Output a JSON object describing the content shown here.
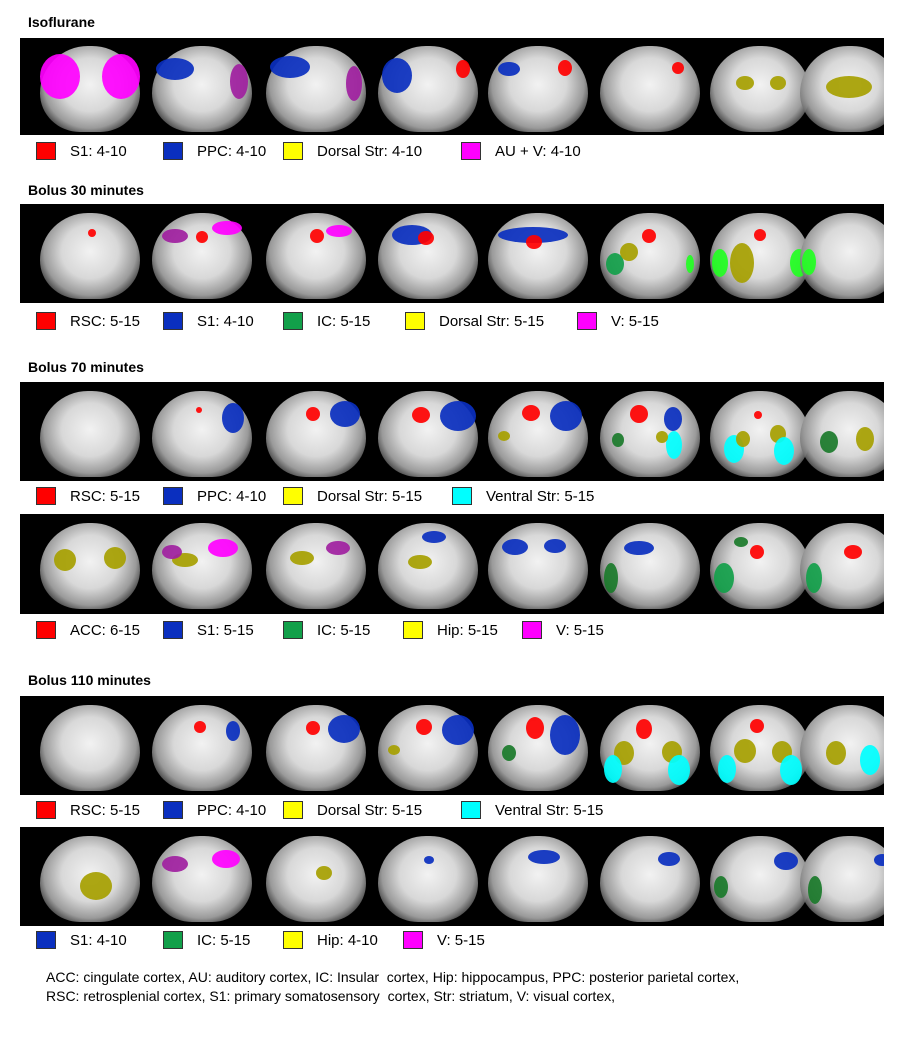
{
  "colors": {
    "red": "#ff0000",
    "blue": "#0a2fbf",
    "green": "#12a04a",
    "yellow": "#ffff00",
    "magenta": "#ff00ff",
    "cyan": "#00ffff",
    "olive": "#a6a000",
    "purple": "#a020a0",
    "darkgreen": "#1a7a2a",
    "brightgreen": "#22ff22"
  },
  "sections": [
    {
      "title": "Isoflurane",
      "panels": [
        {
          "legend": [
            {
              "label": "S1: 4-10",
              "color": "red"
            },
            {
              "label": "PPC: 4-10",
              "color": "blue"
            },
            {
              "label": "Dorsal Str: 4-10",
              "color": "yellow"
            },
            {
              "label": "AU + V: 4-10",
              "color": "magenta"
            }
          ]
        }
      ]
    },
    {
      "title": "Bolus 30 minutes",
      "panels": [
        {
          "legend": [
            {
              "label": "RSC: 5-15",
              "color": "red"
            },
            {
              "label": "S1: 4-10",
              "color": "blue"
            },
            {
              "label": "IC: 5-15",
              "color": "green"
            },
            {
              "label": "Dorsal Str: 5-15",
              "color": "yellow"
            },
            {
              "label": "V: 5-15",
              "color": "magenta"
            }
          ]
        }
      ]
    },
    {
      "title": "Bolus 70 minutes",
      "panels": [
        {
          "legend": [
            {
              "label": "RSC: 5-15",
              "color": "red"
            },
            {
              "label": "PPC: 4-10",
              "color": "blue"
            },
            {
              "label": "Dorsal Str: 5-15",
              "color": "yellow"
            },
            {
              "label": "Ventral Str: 5-15",
              "color": "cyan"
            }
          ]
        },
        {
          "legend": [
            {
              "label": "ACC: 6-15",
              "color": "red"
            },
            {
              "label": "S1: 5-15",
              "color": "blue"
            },
            {
              "label": "IC: 5-15",
              "color": "green"
            },
            {
              "label": "Hip: 5-15",
              "color": "yellow"
            },
            {
              "label": "V: 5-15",
              "color": "magenta"
            }
          ]
        }
      ]
    },
    {
      "title": "Bolus 110 minutes",
      "panels": [
        {
          "legend": [
            {
              "label": "RSC: 5-15",
              "color": "red"
            },
            {
              "label": "PPC: 4-10",
              "color": "blue"
            },
            {
              "label": "Dorsal Str: 5-15",
              "color": "yellow"
            },
            {
              "label": "Ventral Str: 5-15",
              "color": "cyan"
            }
          ]
        },
        {
          "legend": [
            {
              "label": "S1: 4-10",
              "color": "blue"
            },
            {
              "label": "IC: 5-15",
              "color": "green"
            },
            {
              "label": "Hip: 4-10",
              "color": "yellow"
            },
            {
              "label": "V: 5-15",
              "color": "magenta"
            }
          ]
        }
      ]
    }
  ],
  "footnote": [
    "ACC: cingulate cortex, AU: auditory cortex, IC: Insular  cortex, Hip: hippocampus, PPC: posterior parietal cortex,",
    "RSC: retrosplenial cortex, S1: primary somatosensory  cortex, Str: striatum, V: visual cortex,"
  ]
}
